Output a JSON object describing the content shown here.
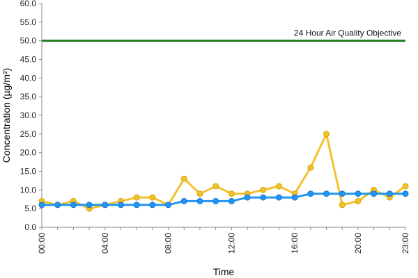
{
  "chart_data": {
    "type": "line",
    "xlabel": "Time",
    "ylabel": "Concentration (µg/m³)",
    "ylim": [
      0,
      60
    ],
    "yticks": [
      "0.0",
      "5.0",
      "10.0",
      "15.0",
      "20.0",
      "25.0",
      "30.0",
      "35.0",
      "40.0",
      "45.0",
      "50.0",
      "55.0",
      "60.0"
    ],
    "xticks": [
      "00:00",
      "04:00",
      "08:00",
      "12:00",
      "16:00",
      "20:00",
      "23:00"
    ],
    "x": [
      "00:00",
      "01:00",
      "02:00",
      "03:00",
      "04:00",
      "05:00",
      "06:00",
      "07:00",
      "08:00",
      "09:00",
      "10:00",
      "11:00",
      "12:00",
      "13:00",
      "14:00",
      "15:00",
      "16:00",
      "17:00",
      "18:00",
      "19:00",
      "20:00",
      "21:00",
      "22:00",
      "23:00"
    ],
    "grid": false,
    "series": [
      {
        "color": "#f2c12e",
        "values": [
          7,
          6,
          7,
          5,
          6,
          7,
          8,
          8,
          6,
          13,
          9,
          11,
          9,
          9,
          10,
          11,
          9,
          16,
          25,
          6,
          7,
          10,
          8,
          11
        ]
      },
      {
        "color": "#2196f3",
        "values": [
          6,
          6,
          6,
          6,
          6,
          6,
          6,
          6,
          6,
          7,
          7,
          7,
          7,
          8,
          8,
          8,
          8,
          9,
          9,
          9,
          9,
          9,
          9,
          9
        ]
      }
    ],
    "reference_line": {
      "value": 50,
      "color": "#1f7a1f",
      "label": "24 Hour Air Quality Objective"
    }
  }
}
